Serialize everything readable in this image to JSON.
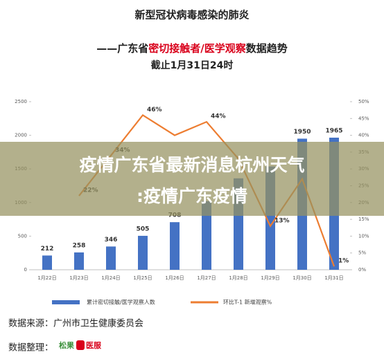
{
  "chart_data": {
    "type": "bar_line",
    "title": "新型冠状病毒感染的肺炎",
    "subtitle_parts": [
      "——广东省",
      "密切接触者/医学观察",
      "数据趋势"
    ],
    "subtitle_line2": "截止1月31日24时",
    "categories": [
      "1月22日",
      "1月23日",
      "1月24日",
      "1月25日",
      "1月26日",
      "1月27日",
      "1月28日",
      "1月29日",
      "1月30日",
      "1月31日"
    ],
    "series": [
      {
        "name": "累计密切接触/医学观察人数",
        "color": "#4472c4",
        "type": "bar",
        "values": [
          212,
          258,
          346,
          505,
          708,
          1020,
          1360,
          1537,
          1950,
          1965
        ],
        "value_labels": [
          "212",
          "258",
          "346",
          "505",
          "708",
          null,
          null,
          null,
          "1950",
          "1965"
        ]
      },
      {
        "name": "环比T-1 新增观察%",
        "color": "#ed7d31",
        "type": "line",
        "axis": "y2",
        "values": [
          null,
          22,
          34,
          46,
          40,
          44,
          33,
          13,
          27,
          1
        ],
        "value_labels": [
          null,
          "22%",
          "34%",
          "46%",
          null,
          "44%",
          null,
          "13%",
          null,
          "1%"
        ]
      }
    ],
    "ylim": [
      0,
      2500
    ],
    "yticks": [
      0,
      500,
      1000,
      1500,
      2000,
      2500
    ],
    "y2lim": [
      0,
      50
    ],
    "y2ticks": [
      {
        "value": 0,
        "label": "0%"
      },
      {
        "value": 5,
        "label": "5%"
      },
      {
        "value": 10,
        "label": "10%"
      },
      {
        "value": 15,
        "label": "15%"
      },
      {
        "value": 20,
        "label": "20%"
      },
      {
        "value": 25,
        "label": "25%"
      },
      {
        "value": 30,
        "label": "30%"
      },
      {
        "value": 35,
        "label": "35%"
      },
      {
        "value": 40,
        "label": "40%"
      },
      {
        "value": 45,
        "label": "45%"
      },
      {
        "value": 50,
        "label": "50%"
      }
    ],
    "grid": false,
    "overlay_lines": [
      "疫情广东省最新消息杭州天气",
      ":疫情广东疫情"
    ],
    "source": "数据来源：广州市卫生健康委员会",
    "organizer": "数据整理：",
    "logo_text": [
      "松果",
      "医服"
    ]
  }
}
